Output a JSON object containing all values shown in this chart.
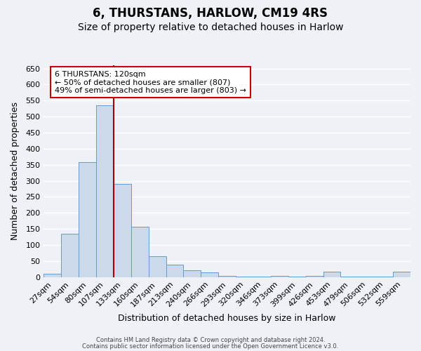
{
  "title": "6, THURSTANS, HARLOW, CM19 4RS",
  "subtitle": "Size of property relative to detached houses in Harlow",
  "xlabel": "Distribution of detached houses by size in Harlow",
  "ylabel": "Number of detached properties",
  "bar_color": "#ccd9ea",
  "bar_edge_color": "#6699cc",
  "vline_color": "#aa0000",
  "annotation_title": "6 THURSTANS: 120sqm",
  "annotation_line1": "← 50% of detached houses are smaller (807)",
  "annotation_line2": "49% of semi-detached houses are larger (803) →",
  "annotation_box_facecolor": "#ffffff",
  "annotation_box_edgecolor": "#cc0000",
  "ylim_max": 660,
  "ytick_step": 50,
  "background_color": "#eef2f7",
  "grid_color": "#ffffff",
  "footer1": "Contains HM Land Registry data © Crown copyright and database right 2024.",
  "footer2": "Contains public sector information licensed under the Open Government Licence v3.0.",
  "title_fontsize": 12,
  "subtitle_fontsize": 10,
  "all_labels": [
    "27sqm",
    "54sqm",
    "80sqm",
    "107sqm",
    "133sqm",
    "160sqm",
    "187sqm",
    "213sqm",
    "240sqm",
    "266sqm",
    "293sqm",
    "320sqm",
    "346sqm",
    "373sqm",
    "399sqm",
    "426sqm",
    "453sqm",
    "479sqm",
    "506sqm",
    "532sqm",
    "559sqm"
  ],
  "bar_heights": [
    10,
    135,
    358,
    535,
    290,
    157,
    65,
    40,
    22,
    15,
    4,
    2,
    1,
    5,
    1,
    3,
    18,
    2,
    1,
    1,
    18
  ],
  "vline_position": 3.5
}
